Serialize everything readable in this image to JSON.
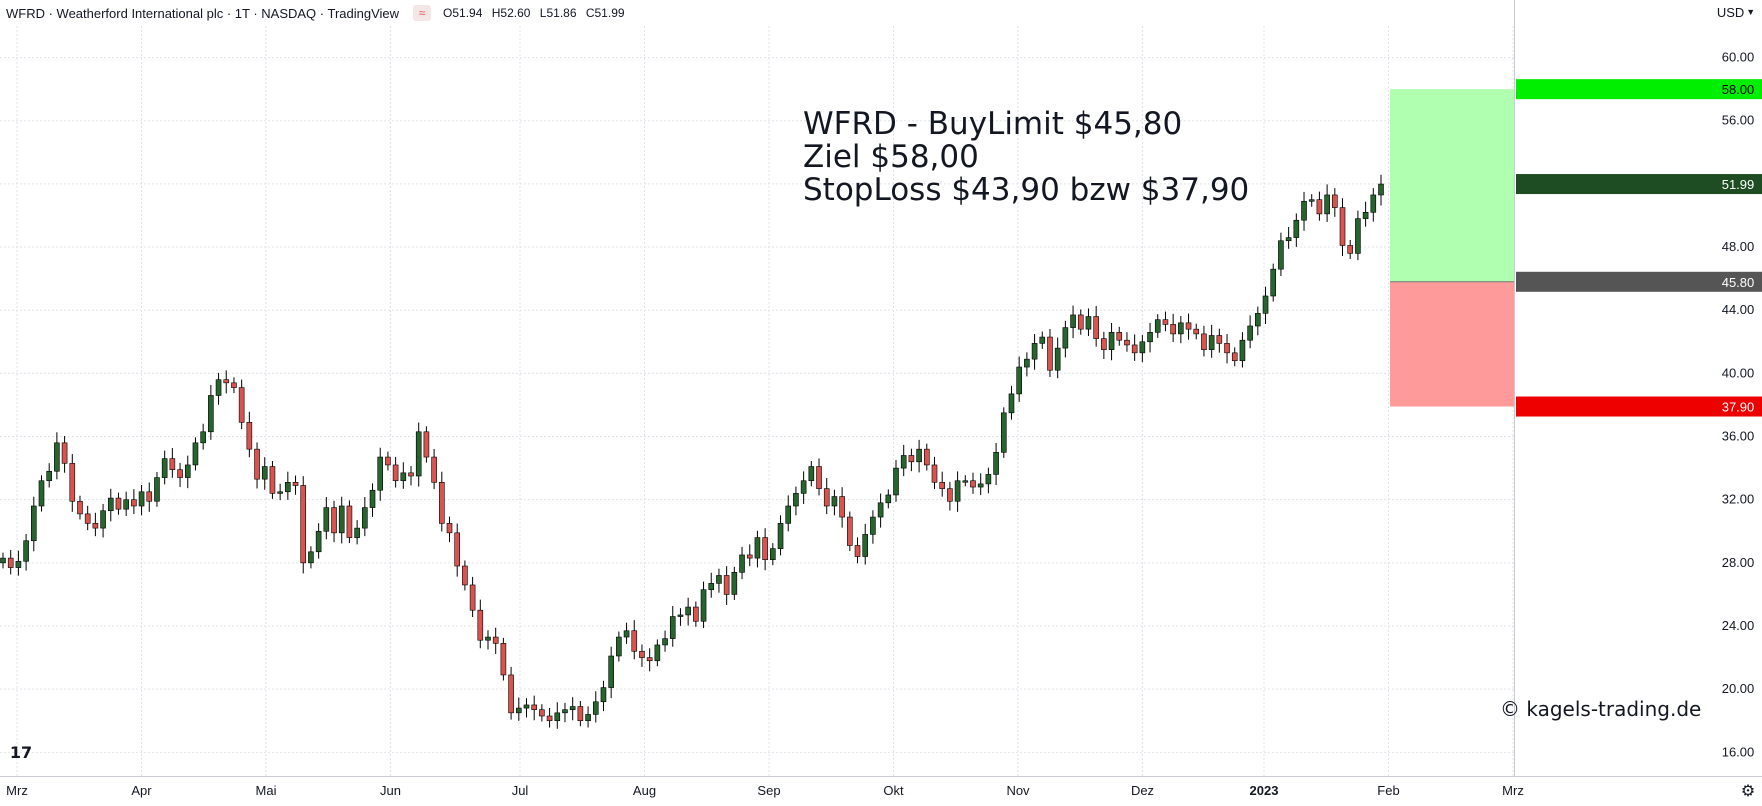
{
  "header": {
    "symbol_line": "WFRD · Weatherford International plc · 1T · NASDAQ · TradingView",
    "indicator_icon": "≈",
    "ohlc": [
      "O51.94",
      "H52.60",
      "L51.86",
      "C51.99"
    ]
  },
  "currency": "USD",
  "currency_icon": "chevron-down-icon",
  "annotation": {
    "line1": "WFRD - BuyLimit $45,80",
    "line2": "Ziel $58,00",
    "line3": "StopLoss $43,90 bzw $37,90"
  },
  "credit": "© kagels-trading.de",
  "colors": {
    "up": "#26652e",
    "down": "#d9534f",
    "target_zone": "#b0ffb0",
    "stop_zone": "#ff9a9a",
    "target_label": "#00ee00",
    "price_label": "#1e4d23",
    "entry_label": "#555555",
    "stop_label": "#ee0000"
  },
  "chart_data": {
    "type": "candlestick",
    "ylim": [
      14.5,
      62
    ],
    "y_ticks": [
      60,
      56,
      48,
      44,
      40,
      36,
      32,
      28,
      24,
      20,
      16
    ],
    "y_tick_labels": [
      "60.00",
      "56.00",
      "48.00",
      "44.00",
      "40.00",
      "36.00",
      "32.00",
      "28.00",
      "24.00",
      "20.00",
      "16.00"
    ],
    "x_labels": [
      "Mrz",
      "Apr",
      "Mai",
      "Jun",
      "Jul",
      "Aug",
      "Sep",
      "Okt",
      "Nov",
      "Dez",
      "2023",
      "Feb",
      "Mrz"
    ],
    "price_levels": [
      {
        "name": "target",
        "value": 58.0,
        "label": "58.00"
      },
      {
        "name": "last",
        "value": 51.99,
        "label": "51.99"
      },
      {
        "name": "entry",
        "value": 45.8,
        "label": "45.80"
      },
      {
        "name": "stop",
        "value": 37.9,
        "label": "37.90"
      }
    ],
    "zones": [
      {
        "name": "target-zone",
        "from": 45.8,
        "to": 58.0
      },
      {
        "name": "stop-zone",
        "from": 37.9,
        "to": 45.8
      }
    ],
    "close": [
      28.3,
      27.7,
      28.1,
      29.4,
      31.6,
      33.2,
      33.8,
      35.6,
      34.3,
      31.9,
      31.1,
      30.5,
      30.2,
      31.3,
      32.1,
      31.4,
      32.0,
      31.6,
      32.5,
      31.9,
      33.4,
      34.6,
      33.9,
      33.4,
      34.2,
      35.6,
      36.3,
      38.6,
      39.6,
      39.4,
      39.1,
      36.9,
      35.2,
      33.3,
      34.1,
      32.4,
      32.5,
      33.1,
      32.9,
      28.0,
      28.7,
      30.0,
      31.5,
      29.9,
      31.6,
      29.6,
      30.2,
      31.5,
      32.6,
      34.7,
      34.2,
      33.2,
      33.7,
      33.5,
      36.3,
      34.7,
      33.1,
      30.5,
      29.9,
      27.8,
      26.6,
      25.0,
      23.1,
      23.3,
      22.9,
      20.9,
      18.5,
      18.8,
      19.0,
      18.7,
      18.3,
      18.0,
      18.5,
      18.7,
      18.9,
      18.0,
      18.4,
      19.2,
      20.1,
      22.1,
      23.3,
      23.7,
      22.4,
      22.0,
      21.8,
      22.8,
      23.2,
      24.6,
      24.7,
      25.2,
      24.3,
      26.3,
      26.7,
      27.2,
      26.0,
      27.4,
      28.5,
      28.3,
      29.6,
      28.2,
      28.9,
      30.5,
      31.6,
      32.4,
      33.2,
      34.1,
      32.7,
      31.6,
      32.2,
      30.9,
      29.1,
      28.4,
      29.8,
      30.9,
      31.8,
      32.3,
      34.0,
      34.8,
      34.4,
      35.2,
      34.2,
      33.1,
      32.7,
      31.9,
      33.2,
      33.2,
      32.8,
      33.0,
      33.6,
      35.0,
      37.5,
      38.7,
      40.4,
      40.9,
      41.9,
      42.3,
      40.2,
      41.6,
      42.9,
      43.7,
      42.8,
      43.6,
      42.2,
      41.5,
      42.6,
      42.1,
      41.8,
      41.3,
      42.0,
      42.6,
      43.4,
      43.1,
      42.5,
      43.2,
      42.8,
      42.5,
      41.5,
      42.4,
      41.9,
      41.3,
      40.8,
      42.1,
      43.0,
      43.8,
      44.9,
      46.6,
      48.4,
      48.6,
      49.7,
      50.9,
      51.0,
      50.1,
      51.3,
      50.5,
      48.1,
      47.6,
      49.8,
      50.2,
      51.3,
      51.99
    ]
  }
}
